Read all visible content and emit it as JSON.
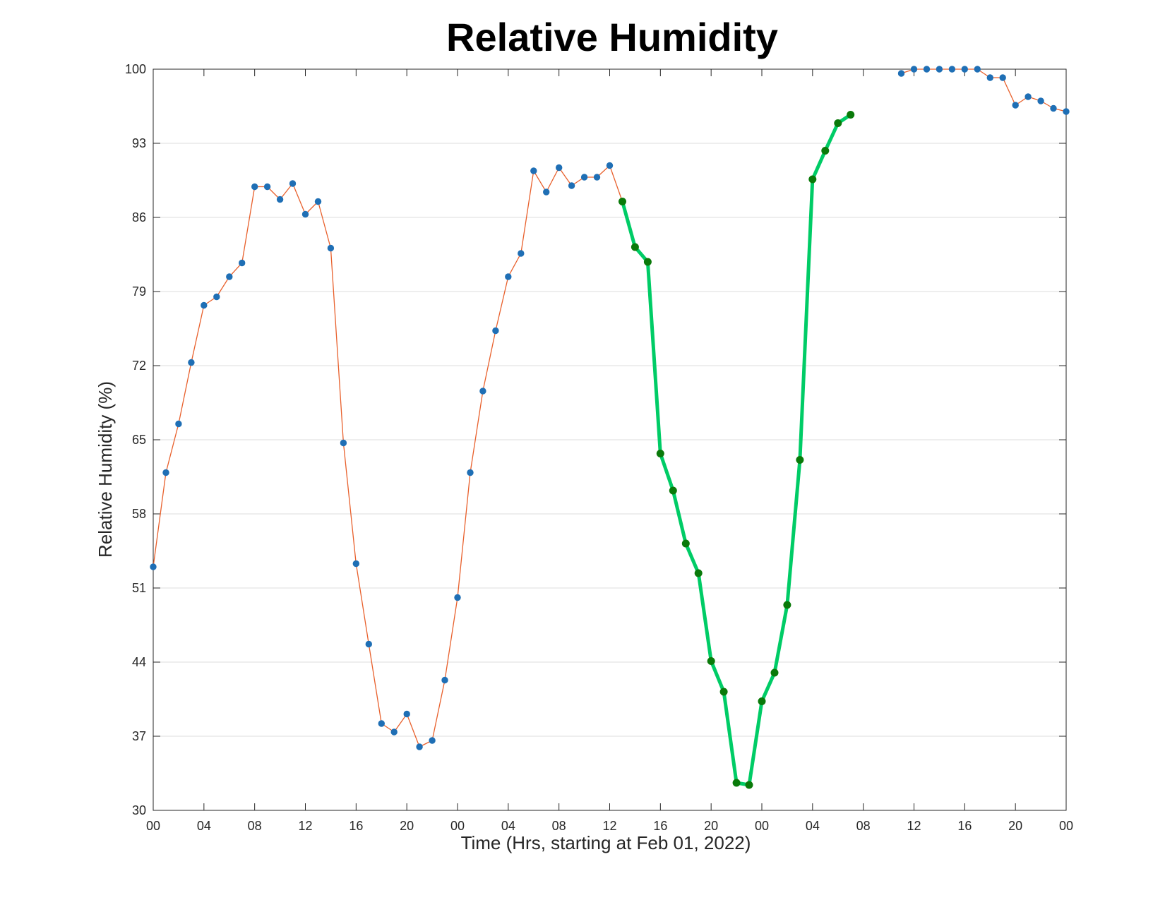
{
  "chart_data": {
    "type": "line",
    "title": "Relative Humidity",
    "xlabel": "Time (Hrs, starting at Feb 01, 2022)",
    "ylabel": "Relative Humidity (%)",
    "ylim": [
      30,
      100
    ],
    "yticks": [
      "30",
      "37",
      "44",
      "51",
      "58",
      "65",
      "72",
      "79",
      "86",
      "93",
      "100"
    ],
    "xlim": [
      "2022-02-01 00:00",
      "2022-02-04 00:00"
    ],
    "xticks": [
      {
        "label": "00",
        "time": "2022-02-01 00:00"
      },
      {
        "label": "04",
        "time": "2022-02-01 04:00"
      },
      {
        "label": "08",
        "time": "2022-02-01 08:00"
      },
      {
        "label": "12",
        "time": "2022-02-01 12:00"
      },
      {
        "label": "16",
        "time": "2022-02-01 16:00"
      },
      {
        "label": "20",
        "time": "2022-02-01 20:00"
      },
      {
        "label": "00",
        "time": "2022-02-02 00:00"
      },
      {
        "label": "04",
        "time": "2022-02-02 04:00"
      },
      {
        "label": "08",
        "time": "2022-02-02 08:00"
      },
      {
        "label": "12",
        "time": "2022-02-02 12:00"
      },
      {
        "label": "16",
        "time": "2022-02-02 16:00"
      },
      {
        "label": "20",
        "time": "2022-02-02 20:00"
      },
      {
        "label": "00",
        "time": "2022-02-03 00:00"
      },
      {
        "label": "04",
        "time": "2022-02-03 04:00"
      },
      {
        "label": "08",
        "time": "2022-02-03 08:00"
      },
      {
        "label": "12",
        "time": "2022-02-03 12:00"
      },
      {
        "label": "16",
        "time": "2022-02-03 16:00"
      },
      {
        "label": "20",
        "time": "2022-02-03 20:00"
      },
      {
        "label": "00",
        "time": "2022-02-04 00:00"
      }
    ],
    "grid": "horizontal",
    "series": [
      {
        "line_color": "#e8602c",
        "marker_color": "#1f6fb5",
        "style": "thin line with dot markers",
        "segments": [
          [
            [
              "2022-02-01 00:00",
              53.0
            ],
            [
              "2022-02-01 01:00",
              61.9
            ],
            [
              "2022-02-01 02:00",
              66.5
            ],
            [
              "2022-02-01 03:00",
              72.3
            ],
            [
              "2022-02-01 04:00",
              77.7
            ],
            [
              "2022-02-01 05:00",
              78.5
            ],
            [
              "2022-02-01 06:00",
              80.4
            ],
            [
              "2022-02-01 07:00",
              81.7
            ],
            [
              "2022-02-01 08:00",
              88.9
            ],
            [
              "2022-02-01 09:00",
              88.9
            ],
            [
              "2022-02-01 10:00",
              87.7
            ],
            [
              "2022-02-01 11:00",
              89.2
            ],
            [
              "2022-02-01 12:00",
              86.3
            ],
            [
              "2022-02-01 13:00",
              87.5
            ],
            [
              "2022-02-01 14:00",
              83.1
            ],
            [
              "2022-02-01 15:00",
              64.7
            ],
            [
              "2022-02-01 16:00",
              53.3
            ],
            [
              "2022-02-01 17:00",
              45.7
            ],
            [
              "2022-02-01 18:00",
              38.2
            ],
            [
              "2022-02-01 19:00",
              37.4
            ],
            [
              "2022-02-01 20:00",
              39.1
            ],
            [
              "2022-02-01 21:00",
              36.0
            ],
            [
              "2022-02-01 22:00",
              36.6
            ],
            [
              "2022-02-01 23:00",
              42.3
            ],
            [
              "2022-02-02 00:00",
              50.1
            ],
            [
              "2022-02-02 01:00",
              61.9
            ],
            [
              "2022-02-02 02:00",
              69.6
            ],
            [
              "2022-02-02 03:00",
              75.3
            ],
            [
              "2022-02-02 04:00",
              80.4
            ],
            [
              "2022-02-02 05:00",
              82.6
            ],
            [
              "2022-02-02 06:00",
              90.4
            ],
            [
              "2022-02-02 07:00",
              88.4
            ],
            [
              "2022-02-02 08:00",
              90.7
            ],
            [
              "2022-02-02 09:00",
              89.0
            ],
            [
              "2022-02-02 10:00",
              89.8
            ],
            [
              "2022-02-02 11:00",
              89.8
            ],
            [
              "2022-02-02 12:00",
              90.9
            ],
            [
              "2022-02-02 13:00",
              87.5
            ]
          ],
          [
            [
              "2022-02-03 11:00",
              99.6
            ],
            [
              "2022-02-03 12:00",
              100.0
            ],
            [
              "2022-02-03 13:00",
              100.0
            ],
            [
              "2022-02-03 14:00",
              100.0
            ],
            [
              "2022-02-03 15:00",
              100.0
            ],
            [
              "2022-02-03 16:00",
              100.0
            ],
            [
              "2022-02-03 17:00",
              100.0
            ],
            [
              "2022-02-03 18:00",
              99.2
            ],
            [
              "2022-02-03 19:00",
              99.2
            ],
            [
              "2022-02-03 20:00",
              96.6
            ],
            [
              "2022-02-03 21:00",
              97.4
            ],
            [
              "2022-02-03 22:00",
              97.0
            ],
            [
              "2022-02-03 23:00",
              96.3
            ],
            [
              "2022-02-04 00:00",
              96.0
            ]
          ]
        ]
      },
      {
        "line_color": "#00cc66",
        "marker_color": "#0a7a0a",
        "style": "thick line with dot markers",
        "segments": [
          [
            [
              "2022-02-02 13:00",
              87.5
            ],
            [
              "2022-02-02 14:00",
              83.2
            ],
            [
              "2022-02-02 15:00",
              81.8
            ],
            [
              "2022-02-02 16:00",
              63.7
            ],
            [
              "2022-02-02 17:00",
              60.2
            ],
            [
              "2022-02-02 18:00",
              55.2
            ],
            [
              "2022-02-02 19:00",
              52.4
            ],
            [
              "2022-02-02 20:00",
              44.1
            ],
            [
              "2022-02-02 21:00",
              41.2
            ],
            [
              "2022-02-02 22:00",
              32.6
            ],
            [
              "2022-02-02 23:00",
              32.4
            ],
            [
              "2022-02-03 00:00",
              40.3
            ],
            [
              "2022-02-03 01:00",
              43.0
            ],
            [
              "2022-02-03 02:00",
              49.4
            ],
            [
              "2022-02-03 03:00",
              63.1
            ],
            [
              "2022-02-03 04:00",
              89.6
            ],
            [
              "2022-02-03 05:00",
              92.3
            ],
            [
              "2022-02-03 06:00",
              94.9
            ],
            [
              "2022-02-03 07:00",
              95.7
            ]
          ]
        ]
      }
    ]
  }
}
